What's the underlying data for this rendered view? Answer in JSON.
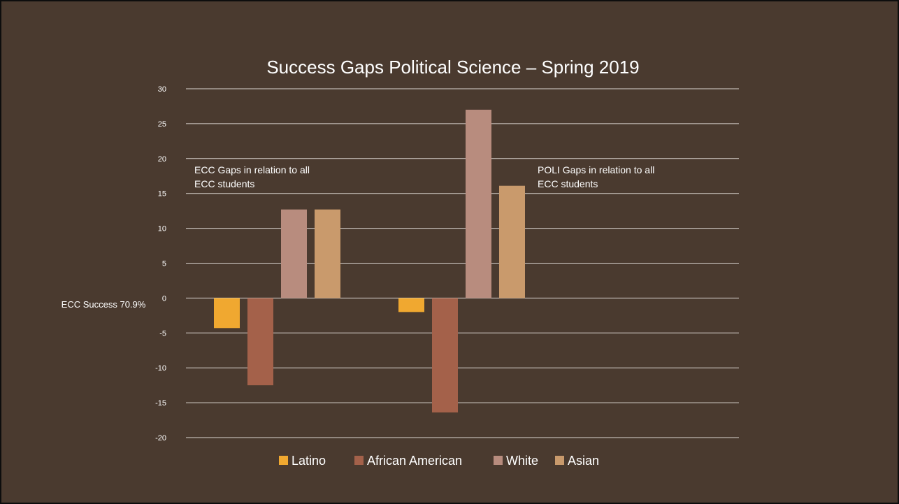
{
  "chart_data": {
    "type": "bar",
    "title": "Success Gaps Political Science – Spring 2019",
    "baseline_label": "ECC Success 70.9%",
    "categories": [
      "ECC Gaps in relation to all ECC students",
      "POLI Gaps in relation to all ECC students"
    ],
    "category_label_lines": [
      [
        "ECC Gaps in relation to all",
        "ECC students"
      ],
      [
        "POLI Gaps in relation to all",
        "ECC students"
      ]
    ],
    "series": [
      {
        "name": "Latino",
        "color": "#f0a830",
        "values": [
          -4.3,
          -2.0
        ]
      },
      {
        "name": "African American",
        "color": "#a4614a",
        "values": [
          -12.5,
          -16.4
        ]
      },
      {
        "name": "White",
        "color": "#b88c7e",
        "values": [
          12.7,
          27.0
        ]
      },
      {
        "name": "Asian",
        "color": "#c99a6c",
        "values": [
          12.7,
          16.1
        ]
      }
    ],
    "ylim": [
      -20,
      30
    ],
    "yticks": [
      30,
      25,
      20,
      15,
      10,
      5,
      0,
      -5,
      -10,
      -15,
      -20
    ],
    "grid": true,
    "legend": "bottom",
    "colors": {
      "background": "#4a3a2f",
      "text": "#ffffff",
      "grid": "#d9d4cf"
    }
  }
}
